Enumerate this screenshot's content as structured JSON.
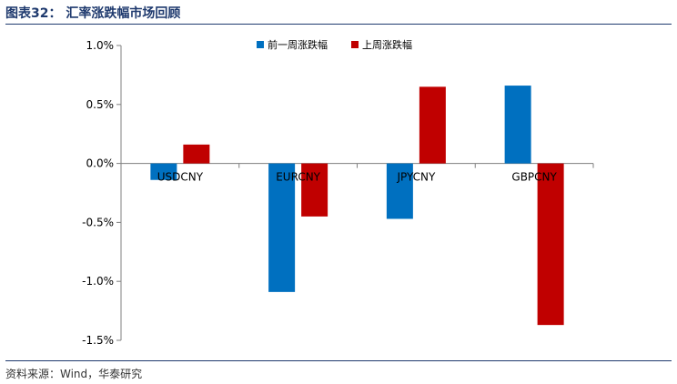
{
  "header": {
    "title": "图表32：  汇率涨跌幅市场回顾"
  },
  "footer": {
    "source": "资料来源：Wind，华泰研究"
  },
  "chart_data": {
    "type": "bar",
    "categories": [
      "USDCNY",
      "EURCNY",
      "JPYCNY",
      "GBPCNY"
    ],
    "series": [
      {
        "name": "前一周涨跌幅",
        "color": "#0070c0",
        "values": [
          -0.14,
          -1.09,
          -0.47,
          0.66
        ]
      },
      {
        "name": "上周涨跌幅",
        "color": "#c00000",
        "values": [
          0.16,
          -0.45,
          0.65,
          -1.37
        ]
      }
    ],
    "ylim": [
      -1.5,
      1.0
    ],
    "yticks": [
      "1.0%",
      "0.5%",
      "0.0%",
      "-0.5%",
      "-1.0%",
      "-1.5%"
    ],
    "ytick_values": [
      1.0,
      0.5,
      0.0,
      -0.5,
      -1.0,
      -1.5
    ],
    "unit": "%",
    "grid": false,
    "legend_position": "top"
  }
}
